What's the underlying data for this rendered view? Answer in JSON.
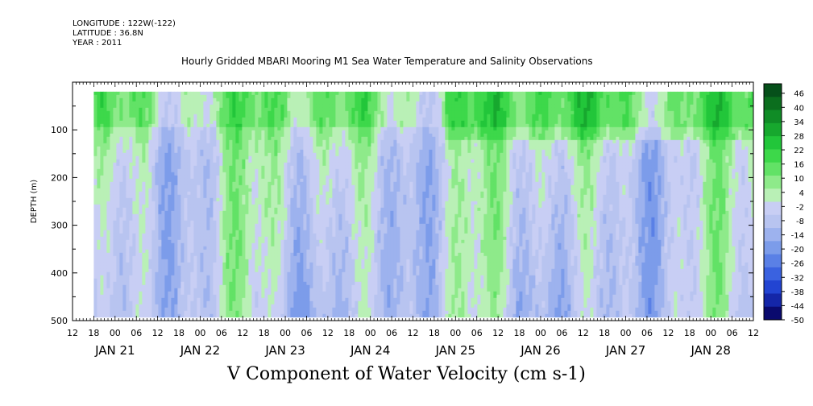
{
  "header": {
    "longitude": "LONGITUDE : 122W(-122)",
    "latitude": "LATITUDE : 36.8N",
    "year": "YEAR : 2011"
  },
  "chart_data": {
    "type": "heatmap",
    "title": "Hourly Gridded MBARI Mooring M1 Sea Water Temperature and Salinity Observations",
    "variable_title": "V Component of Water Velocity (cm s-1)",
    "ylabel": "DEPTH (m)",
    "ylim": [
      500,
      0
    ],
    "y_data_range": [
      20,
      490
    ],
    "yticks": [
      100,
      200,
      300,
      400,
      500
    ],
    "y_reversed": true,
    "x_start": "2011-01-20T12:00",
    "x_end": "2011-01-28T12:00",
    "x_data_start": "2011-01-20T18:00",
    "hour_tick_labels": [
      "12",
      "18",
      "00",
      "06",
      "12",
      "18",
      "00",
      "06",
      "12",
      "18",
      "00",
      "06",
      "12",
      "18",
      "00",
      "06",
      "12",
      "18",
      "00",
      "06",
      "12",
      "18",
      "00",
      "06",
      "12",
      "18",
      "00",
      "06",
      "12",
      "18",
      "00",
      "06",
      "12"
    ],
    "date_labels": [
      {
        "label": "JAN 21",
        "at": "2011-01-21T00:00"
      },
      {
        "label": "JAN 22",
        "at": "2011-01-22T00:00"
      },
      {
        "label": "JAN 23",
        "at": "2011-01-23T00:00"
      },
      {
        "label": "JAN 24",
        "at": "2011-01-24T00:00"
      },
      {
        "label": "JAN 25",
        "at": "2011-01-25T00:00"
      },
      {
        "label": "JAN 26",
        "at": "2011-01-26T00:00"
      },
      {
        "label": "JAN 27",
        "at": "2011-01-27T00:00"
      },
      {
        "label": "JAN 28",
        "at": "2011-01-28T00:00"
      }
    ],
    "colorbar": {
      "min": -50,
      "max": 50,
      "tick_labels": [
        "46",
        "40",
        "34",
        "28",
        "22",
        "16",
        "10",
        "4",
        "-2",
        "-8",
        "-14",
        "-20",
        "-26",
        "-32",
        "-38",
        "-44",
        "-50"
      ],
      "colors_low_to_high": [
        "#0a0a6e",
        "#1426a8",
        "#2244d2",
        "#3a62e0",
        "#5a80e6",
        "#7c9cea",
        "#9db2ee",
        "#b8c4f0",
        "#c8cef4",
        "#b9f0b6",
        "#8eea8a",
        "#62e266",
        "#3dd84a",
        "#22c63a",
        "#17a82e",
        "#108c26",
        "#0b6e1e",
        "#06501a"
      ]
    }
  }
}
